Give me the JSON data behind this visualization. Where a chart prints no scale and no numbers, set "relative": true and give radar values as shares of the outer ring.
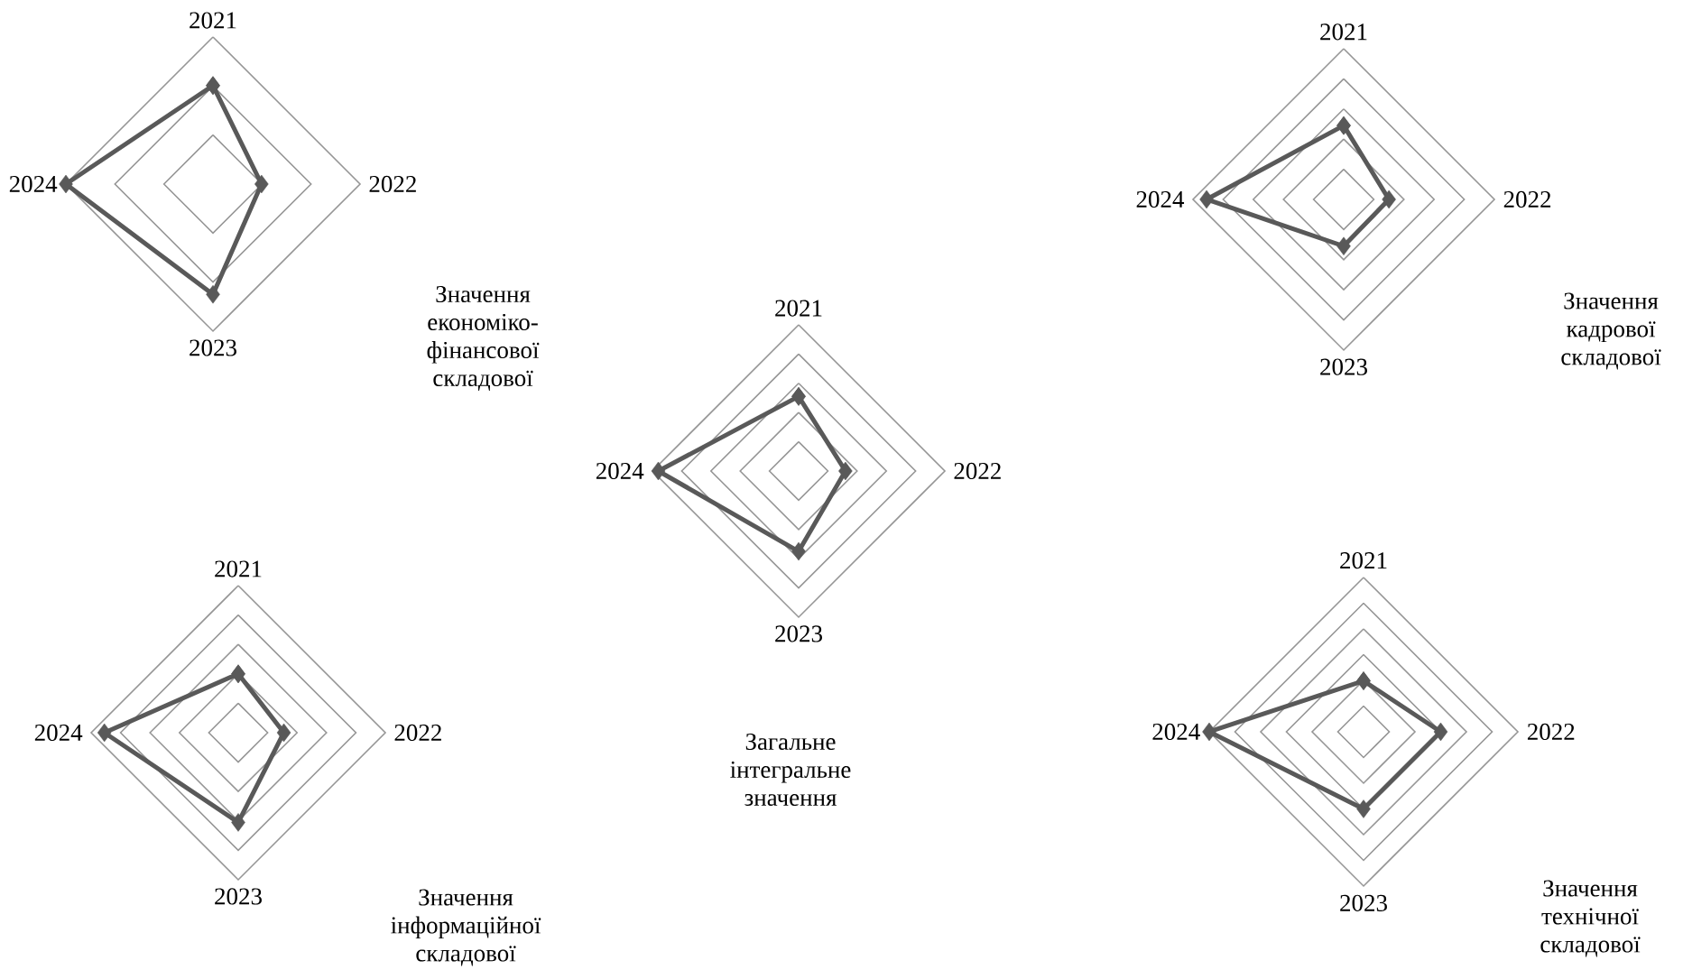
{
  "chart_data": [
    {
      "type": "radar",
      "title": "Значення економіко-фінансової складової",
      "categories": [
        "2021",
        "2022",
        "2023",
        "2024"
      ],
      "relative": true,
      "grid": true,
      "marker": "diamond",
      "series": [
        {
          "color": "#595959",
          "values": [
            0.67,
            0.33,
            0.75,
            1.0
          ]
        }
      ]
    },
    {
      "type": "radar",
      "title": "Значення кадрової складової",
      "categories": [
        "2021",
        "2022",
        "2023",
        "2024"
      ],
      "relative": true,
      "grid": true,
      "marker": "diamond",
      "series": [
        {
          "color": "#595959",
          "values": [
            0.49,
            0.3,
            0.31,
            0.91
          ]
        }
      ]
    },
    {
      "type": "radar",
      "title": "Загальне інтегральне значення",
      "categories": [
        "2021",
        "2022",
        "2023",
        "2024"
      ],
      "relative": true,
      "grid": true,
      "marker": "diamond",
      "series": [
        {
          "color": "#595959",
          "values": [
            0.51,
            0.32,
            0.55,
            0.96
          ]
        }
      ]
    },
    {
      "type": "radar",
      "title": "Значення інформаційної складової",
      "categories": [
        "2021",
        "2022",
        "2023",
        "2024"
      ],
      "relative": true,
      "grid": true,
      "marker": "diamond",
      "series": [
        {
          "color": "#595959",
          "values": [
            0.4,
            0.31,
            0.61,
            0.91
          ]
        }
      ]
    },
    {
      "type": "radar",
      "title": "Значення технічної складової",
      "categories": [
        "2021",
        "2022",
        "2023",
        "2024"
      ],
      "relative": true,
      "grid": true,
      "marker": "diamond",
      "series": [
        {
          "color": "#595959",
          "values": [
            0.33,
            0.5,
            0.5,
            1.0
          ]
        }
      ]
    }
  ]
}
